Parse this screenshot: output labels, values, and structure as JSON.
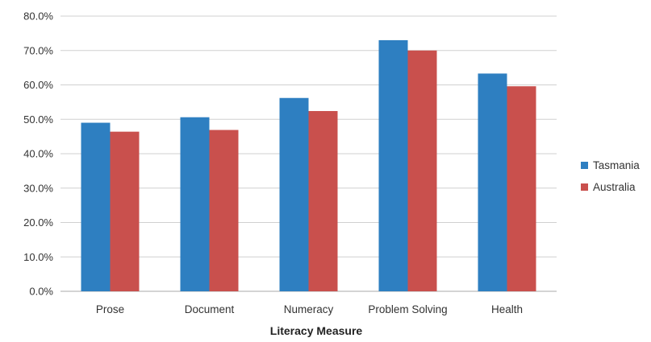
{
  "chart_data": {
    "type": "bar",
    "title": "",
    "xlabel": "Literacy Measure",
    "ylabel": "",
    "categories": [
      "Prose",
      "Document",
      "Numeracy",
      "Problem Solving",
      "Health"
    ],
    "series": [
      {
        "name": "Tasmania",
        "color": "#2e7fc1",
        "values": [
          49.0,
          50.6,
          56.2,
          73.0,
          63.3
        ]
      },
      {
        "name": "Australia",
        "color": "#c9504d",
        "values": [
          46.4,
          46.9,
          52.4,
          70.0,
          59.6
        ]
      }
    ],
    "ylim": [
      0,
      80
    ],
    "yticks": [
      "0.0%",
      "10.0%",
      "20.0%",
      "30.0%",
      "40.0%",
      "50.0%",
      "60.0%",
      "70.0%",
      "80.0%"
    ],
    "grid": true,
    "legend_position": "right"
  }
}
